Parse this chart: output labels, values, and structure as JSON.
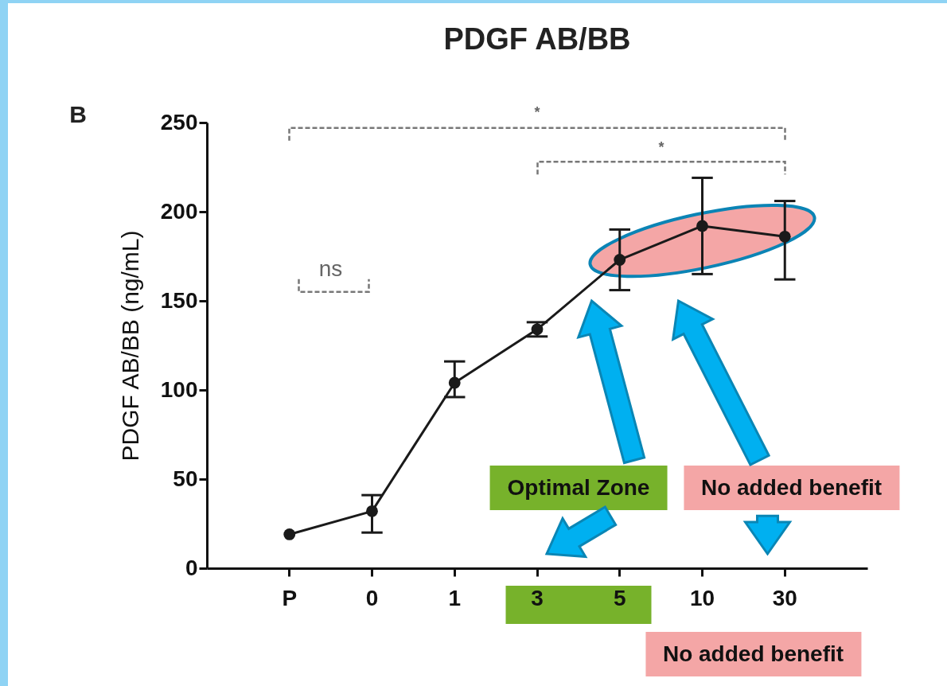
{
  "chart_data": {
    "type": "line",
    "title": "PDGF AB/BB",
    "ylabel": "PDGF AB/BB (ng/mL)",
    "categories": [
      "P",
      "0",
      "1",
      "3",
      "5",
      "10",
      "30"
    ],
    "series": [
      {
        "color": "#1a1a1a",
        "values": [
          19,
          32,
          104,
          134,
          173,
          192,
          186
        ],
        "errors": [
          null,
          [
            20,
            41
          ],
          [
            96,
            116
          ],
          [
            130,
            138
          ],
          [
            156,
            190
          ],
          [
            165,
            219
          ],
          [
            162,
            206
          ]
        ]
      }
    ],
    "ylim": [
      0,
      250
    ],
    "yticks": [
      0,
      50,
      100,
      150,
      200,
      250
    ],
    "grid": false,
    "marker": "circle",
    "line_style": "solid",
    "annotations": [
      "B",
      "ns",
      "*",
      "*",
      "Optimal Zone",
      "No added benefit",
      "No added benefit"
    ]
  }
}
